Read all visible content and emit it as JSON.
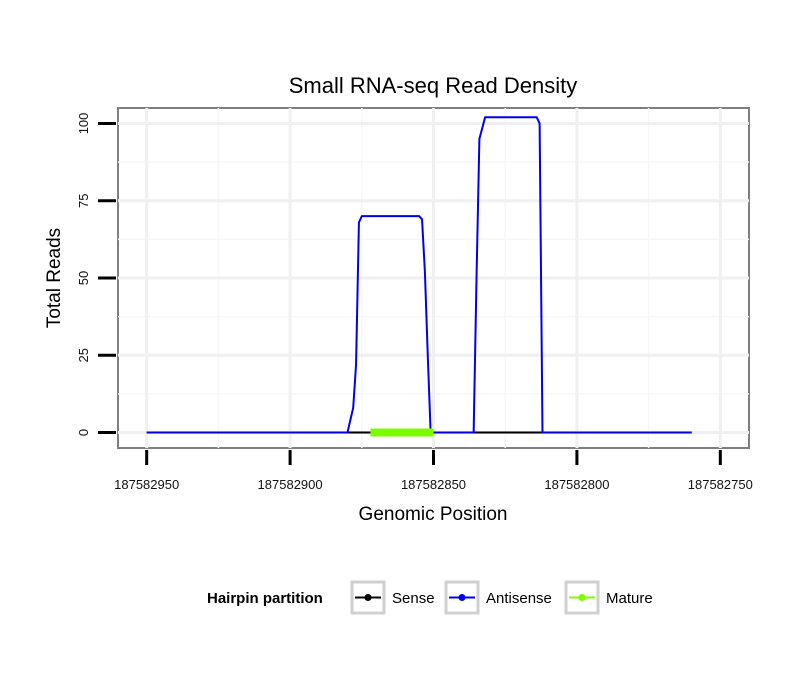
{
  "chart_data": {
    "type": "line",
    "title": "Small RNA-seq Read Density",
    "xlabel": "Genomic Position",
    "ylabel": "Total Reads",
    "xlim": [
      187582960,
      187582740
    ],
    "ylim": [
      -5,
      105
    ],
    "x_reversed": true,
    "grid": true,
    "x_ticks": [
      187582950,
      187582900,
      187582850,
      187582800,
      187582750
    ],
    "x_tick_labels": [
      "187582950",
      "187582900",
      "187582850",
      "187582800",
      "187582750"
    ],
    "y_ticks": [
      0,
      25,
      50,
      75,
      100
    ],
    "y_tick_labels": [
      "0",
      "25",
      "50",
      "75",
      "100"
    ],
    "legend": {
      "title": "Hairpin partition",
      "position": "bottom",
      "entries": [
        {
          "name": "Sense",
          "color": "#000000"
        },
        {
          "name": "Antisense",
          "color": "#0000ee"
        },
        {
          "name": "Mature",
          "color": "#7cfc00"
        }
      ]
    },
    "series": [
      {
        "name": "Sense",
        "color": "#000000",
        "x": [
          187582950,
          187582760
        ],
        "y": [
          0,
          0
        ]
      },
      {
        "name": "Antisense",
        "color": "#0000ee",
        "x": [
          187582950,
          187582880,
          187582878,
          187582877,
          187582876,
          187582875,
          187582855,
          187582854,
          187582853,
          187582852,
          187582851,
          187582836,
          187582835,
          187582834,
          187582832,
          187582814,
          187582813,
          187582812,
          187582760
        ],
        "y": [
          0,
          0,
          8,
          22,
          68,
          70,
          70,
          69,
          52,
          25,
          0,
          0,
          50,
          95,
          102,
          102,
          100,
          0,
          0
        ]
      },
      {
        "name": "Mature",
        "color": "#7cfc00",
        "x": [
          187582872,
          187582850
        ],
        "y": [
          0,
          0
        ]
      }
    ]
  }
}
